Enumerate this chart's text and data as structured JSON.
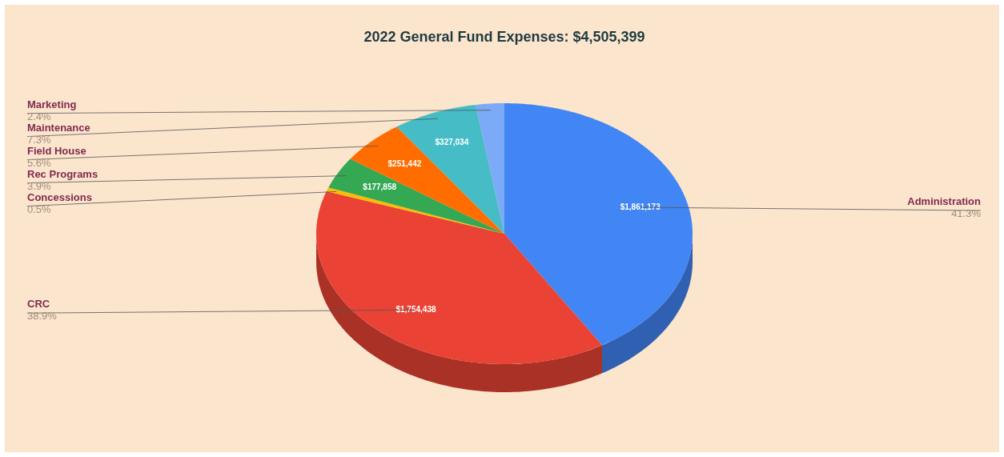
{
  "chart_data": {
    "type": "pie",
    "title": "2022 General Fund Expenses:  $4,505,399",
    "categories": [
      "Administration",
      "CRC",
      "Concessions",
      "Rec Programs",
      "Field House",
      "Maintenance",
      "Marketing"
    ],
    "values": [
      1861173,
      1754438,
      23000,
      177858,
      251442,
      327034,
      110000
    ],
    "value_labels": [
      "$1,861,173",
      "$1,754,438",
      null,
      "$177,858",
      "$251,442",
      "$327,034",
      null
    ],
    "annotations": [
      "41.3%",
      "38.9%",
      "0.5%",
      "3.9%",
      "5.6%",
      "7.3%",
      "2.4%"
    ],
    "colors": [
      "#4285f4",
      "#ea4335",
      "#fbbc04",
      "#34a853",
      "#ff6d01",
      "#46bdc6",
      "#7baaf7"
    ]
  }
}
